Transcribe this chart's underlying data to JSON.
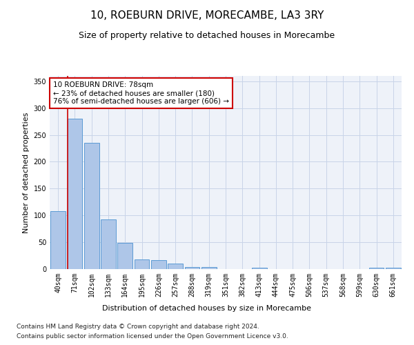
{
  "title": "10, ROEBURN DRIVE, MORECAMBE, LA3 3RY",
  "subtitle": "Size of property relative to detached houses in Morecambe",
  "xlabel": "Distribution of detached houses by size in Morecambe",
  "ylabel": "Number of detached properties",
  "bar_color": "#aec6e8",
  "bar_edge_color": "#5b9bd5",
  "highlight_line_color": "#cc0000",
  "background_color": "#eef2f9",
  "categories": [
    "40sqm",
    "71sqm",
    "102sqm",
    "133sqm",
    "164sqm",
    "195sqm",
    "226sqm",
    "257sqm",
    "288sqm",
    "319sqm",
    "351sqm",
    "382sqm",
    "413sqm",
    "444sqm",
    "475sqm",
    "506sqm",
    "537sqm",
    "568sqm",
    "599sqm",
    "630sqm",
    "661sqm"
  ],
  "values": [
    108,
    280,
    235,
    93,
    49,
    18,
    17,
    10,
    4,
    4,
    0,
    0,
    2,
    0,
    0,
    0,
    0,
    0,
    0,
    3,
    3
  ],
  "highlight_index": 1,
  "annotation_line1": "10 ROEBURN DRIVE: 78sqm",
  "annotation_line2": "← 23% of detached houses are smaller (180)",
  "annotation_line3": "76% of semi-detached houses are larger (606) →",
  "annotation_box_color": "white",
  "annotation_box_edge_color": "#cc0000",
  "ylim": [
    0,
    360
  ],
  "yticks": [
    0,
    50,
    100,
    150,
    200,
    250,
    300,
    350
  ],
  "footer_line1": "Contains HM Land Registry data © Crown copyright and database right 2024.",
  "footer_line2": "Contains public sector information licensed under the Open Government Licence v3.0.",
  "grid_color": "#c8d4e8",
  "title_fontsize": 11,
  "subtitle_fontsize": 9,
  "axis_label_fontsize": 8,
  "tick_fontsize": 7,
  "annotation_fontsize": 7.5,
  "footer_fontsize": 6.5
}
